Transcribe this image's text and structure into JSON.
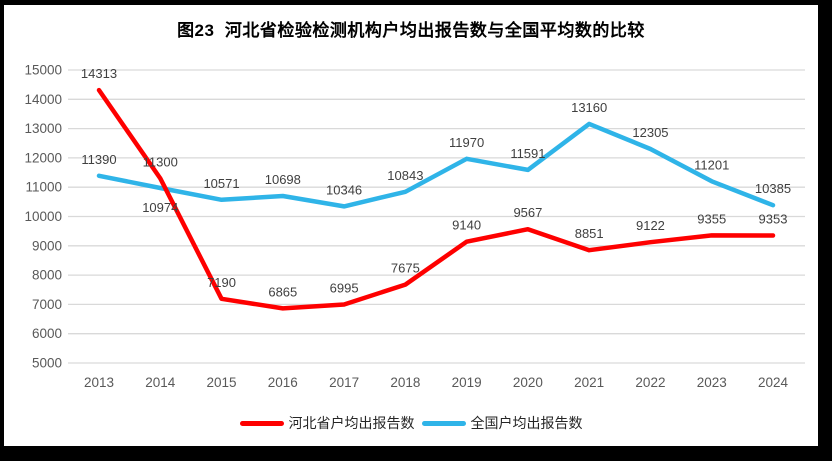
{
  "title": "图23  河北省检验检测机构户均出报告数与全国平均数的比较",
  "chart_data": {
    "type": "line",
    "title": "图23  河北省检验检测机构户均出报告数与全国平均数的比较",
    "xlabel": "",
    "ylabel": "",
    "categories": [
      "2013",
      "2014",
      "2015",
      "2016",
      "2017",
      "2018",
      "2019",
      "2020",
      "2021",
      "2022",
      "2023",
      "2024"
    ],
    "series": [
      {
        "name": "河北省户均出报告数",
        "color": "#fe0000",
        "values": [
          14313,
          11300,
          7190,
          6865,
          6995,
          7675,
          9140,
          9567,
          8851,
          9122,
          9355,
          9353
        ],
        "labels_below": []
      },
      {
        "name": "全国户均出报告数",
        "color": "#2fb4e8",
        "values": [
          11390,
          10974,
          10571,
          10698,
          10346,
          10843,
          11970,
          11591,
          13160,
          12305,
          11201,
          10385
        ],
        "labels_below": [
          1
        ]
      }
    ],
    "ylim": [
      5000,
      15000
    ],
    "ytick_step": 1000,
    "grid": true,
    "legend_position": "bottom"
  },
  "colors": {
    "grid": "#d9d9d9",
    "axis_text": "#595959",
    "data_label_text": "#404040",
    "background": "#ffffff",
    "frame": "#000000"
  }
}
